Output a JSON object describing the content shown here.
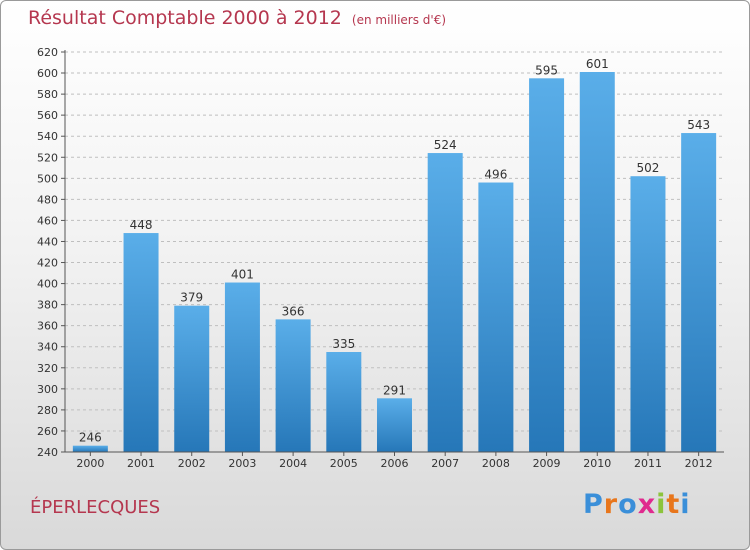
{
  "chart_data": {
    "type": "bar",
    "title": "Résultat Comptable 2000 à 2012",
    "subtitle": "(en milliers d'€)",
    "categories": [
      "2000",
      "2001",
      "2002",
      "2003",
      "2004",
      "2005",
      "2006",
      "2007",
      "2008",
      "2009",
      "2010",
      "2011",
      "2012"
    ],
    "values": [
      246,
      448,
      379,
      401,
      366,
      335,
      291,
      524,
      496,
      595,
      601,
      502,
      543
    ],
    "ylim": [
      240,
      620
    ],
    "yticks": [
      240,
      260,
      280,
      300,
      320,
      340,
      360,
      380,
      400,
      420,
      440,
      460,
      480,
      500,
      520,
      540,
      560,
      580,
      600,
      620
    ],
    "xlabel": "",
    "ylabel": "",
    "grid": true,
    "bar_color_top": "#5aaee9",
    "bar_color_bottom": "#2677b8"
  },
  "footer": {
    "commune": "ÉPERLECQUES",
    "logo": {
      "letters": [
        "P",
        "r",
        "o",
        "x",
        "i",
        "t",
        "i"
      ],
      "colors": [
        "#3a8fd9",
        "#e8761c",
        "#3a8fd9",
        "#e02a8e",
        "#8cc43c",
        "#e8761c",
        "#3a8fd9"
      ]
    }
  }
}
